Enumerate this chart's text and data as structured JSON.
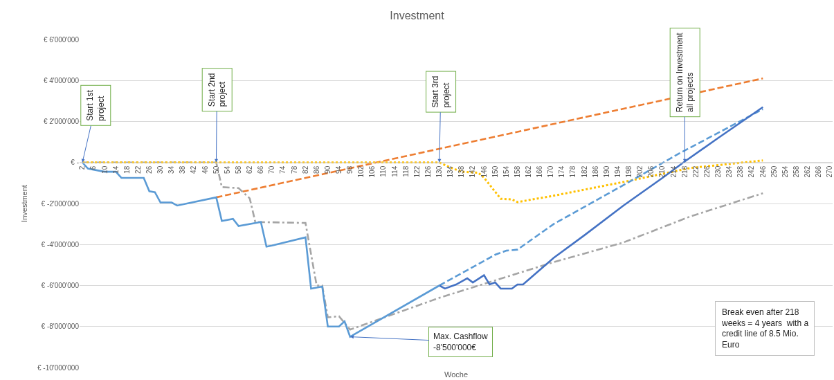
{
  "chart_data": {
    "type": "line",
    "title": "Investment",
    "xlabel": "Woche",
    "ylabel": "Investment",
    "xlim": [
      1,
      271
    ],
    "xticks": [
      2,
      6,
      10,
      14,
      18,
      22,
      26,
      30,
      34,
      38,
      42,
      46,
      50,
      54,
      58,
      62,
      66,
      70,
      74,
      78,
      82,
      86,
      90,
      94,
      98,
      102,
      106,
      110,
      114,
      118,
      122,
      126,
      130,
      134,
      138,
      142,
      146,
      150,
      154,
      158,
      162,
      166,
      170,
      174,
      178,
      182,
      186,
      190,
      194,
      198,
      202,
      206,
      210,
      214,
      218,
      222,
      226,
      230,
      234,
      238,
      242,
      246,
      250,
      254,
      258,
      262,
      266,
      270
    ],
    "ylim": [
      -10000000,
      6000000
    ],
    "yticks": [
      {
        "value": -10000000,
        "label": "€ -10'000'000"
      },
      {
        "value": -8000000,
        "label": "€ -8'000'000"
      },
      {
        "value": -6000000,
        "label": "€ -6'000'000"
      },
      {
        "value": -4000000,
        "label": "€ -4'000'000"
      },
      {
        "value": -2000000,
        "label": "€ -2'000'000"
      },
      {
        "value": 0,
        "label": "€ -"
      },
      {
        "value": 2000000,
        "label": "€ 2'000'000"
      },
      {
        "value": 4000000,
        "label": "€ 4'000'000"
      },
      {
        "value": 6000000,
        "label": "€ 6'000'000"
      }
    ],
    "grid": "y",
    "marker": "none",
    "series": [
      {
        "color": "#ed7d31",
        "line_style": "dashed",
        "x": [
          50,
          246
        ],
        "values": [
          -1700000,
          4100000
        ]
      },
      {
        "color": "#a5a5a5",
        "line_style": "dashdot",
        "x": [
          2,
          50,
          52,
          58,
          62,
          64,
          82,
          86,
          88,
          90,
          94,
          98,
          130,
          170,
          196,
          220,
          246
        ],
        "values": [
          0,
          0,
          -1200000,
          -1250000,
          -1750000,
          -2900000,
          -2950000,
          -6000000,
          -6000000,
          -7550000,
          -7500000,
          -8150000,
          -6600000,
          -4900000,
          -3900000,
          -2630000,
          -1500000
        ]
      },
      {
        "color": "#ffc000",
        "line_style": "dotted",
        "x": [
          2,
          130,
          134,
          138,
          144,
          146,
          152,
          156,
          158,
          171,
          196,
          220,
          246
        ],
        "values": [
          0,
          0,
          -250000,
          -450000,
          -500000,
          -740000,
          -1770000,
          -1800000,
          -1930000,
          -1620000,
          -950000,
          -270000,
          100000
        ]
      },
      {
        "color": "#5b9bd5",
        "line_style": "dashed",
        "x": [
          130,
          150,
          154,
          158,
          171,
          198,
          216,
          246
        ],
        "values": [
          -6000000,
          -4500000,
          -4300000,
          -4250000,
          -3000000,
          -950000,
          440000,
          2600000
        ]
      },
      {
        "color": "#4472c4",
        "line_style": "solid",
        "x": [
          130,
          132,
          136,
          140,
          142,
          146,
          148,
          150,
          152,
          156,
          158,
          160,
          171,
          182,
          196,
          210,
          218,
          230,
          246
        ],
        "values": [
          -6000000,
          -6150000,
          -5950000,
          -5650000,
          -5850000,
          -5500000,
          -5950000,
          -5850000,
          -6150000,
          -6150000,
          -5950000,
          -5950000,
          -4650000,
          -3550000,
          -2100000,
          -750000,
          50000,
          1200000,
          2700000
        ]
      },
      {
        "color": "#5b9bd5",
        "line_style": "solid",
        "x": [
          2,
          4,
          6,
          10,
          14,
          16,
          22,
          24,
          26,
          28,
          30,
          34,
          36,
          50,
          52,
          56,
          58,
          66,
          68,
          70,
          82,
          84,
          88,
          90,
          94,
          96,
          98,
          130
        ],
        "values": [
          0,
          -300000,
          -350000,
          -450000,
          -450000,
          -750000,
          -750000,
          -750000,
          -1400000,
          -1450000,
          -1950000,
          -1950000,
          -2100000,
          -1700000,
          -2850000,
          -2750000,
          -3100000,
          -2900000,
          -4100000,
          -4050000,
          -3650000,
          -6150000,
          -6050000,
          -8000000,
          -8000000,
          -7750000,
          -8500000,
          -6000000
        ]
      }
    ],
    "annotations": [
      {
        "text": "Start 1st\nproject",
        "x": 2,
        "y": 0
      },
      {
        "text": "Start 2nd\nproject",
        "x": 50,
        "y": 0
      },
      {
        "text": "Start 3rd\nproject",
        "x": 130,
        "y": 0
      },
      {
        "text": "Return on Investment\nall projects",
        "x": 218,
        "y": 0
      },
      {
        "text": "Max. Cashflow\n-8'500'000€",
        "x": 98,
        "y": -8500000
      },
      "Break even after 218\nweeks = 4 years  with a\ncredit line of 8.5 Mio.\nEuro"
    ]
  }
}
